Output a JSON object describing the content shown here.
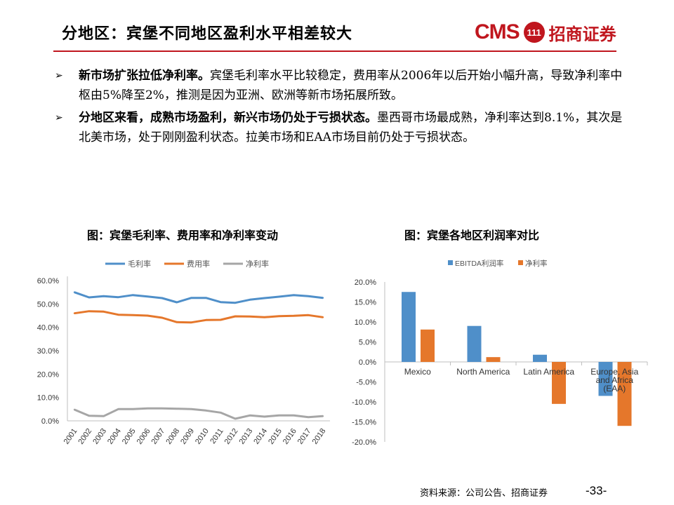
{
  "header": {
    "title": "分地区：宾堡不同地区盈利水平相差较大",
    "logo_text": "CMS",
    "logo_mark": "111",
    "logo_cn": "招商证券",
    "brand_color": "#c0161e"
  },
  "bullets": [
    {
      "icon": "arrow-bullet-icon",
      "bold": "新市场扩张拉低净利率。",
      "text": "宾堡毛利率水平比较稳定，费用率从2006年以后开始小幅升高，导致净利率中枢由5%降至2%，推测是因为亚洲、欧洲等新市场拓展所致。"
    },
    {
      "icon": "arrow-bullet-icon",
      "bold": "分地区来看，成熟市场盈利，新兴市场仍处于亏损状态。",
      "text": "墨西哥市场最成熟，净利率达到8.1%，其次是北美市场，处于刚刚盈利状态。拉美市场和EAA市场目前仍处于亏损状态。"
    }
  ],
  "chart_data": [
    {
      "type": "line",
      "title": "图：宾堡毛利率、费用率和净利率变动",
      "x": [
        "2001",
        "2002",
        "2003",
        "2004",
        "2005",
        "2006",
        "2007",
        "2008",
        "2009",
        "2010",
        "2011",
        "2012",
        "2013",
        "2014",
        "2015",
        "2016",
        "2017",
        "2018"
      ],
      "series": [
        {
          "name": "毛利率",
          "color": "#4f8fc9",
          "values": [
            55.0,
            52.8,
            53.3,
            52.9,
            53.8,
            53.2,
            52.5,
            50.7,
            52.6,
            52.6,
            50.8,
            50.5,
            51.8,
            52.5,
            53.1,
            53.8,
            53.3,
            52.6
          ]
        },
        {
          "name": "费用率",
          "color": "#e5772b",
          "values": [
            46.0,
            46.9,
            46.7,
            45.4,
            45.2,
            45.0,
            44.1,
            42.2,
            42.1,
            43.1,
            43.2,
            44.7,
            44.6,
            44.3,
            44.8,
            44.9,
            45.2,
            44.3
          ]
        },
        {
          "name": "净利率",
          "color": "#a6a6a6",
          "values": [
            4.8,
            2.2,
            2.0,
            5.0,
            5.0,
            5.3,
            5.3,
            5.2,
            5.0,
            4.4,
            3.5,
            0.9,
            2.3,
            1.8,
            2.3,
            2.3,
            1.6,
            2.0
          ]
        }
      ],
      "yticks": [
        "0.0%",
        "10.0%",
        "20.0%",
        "30.0%",
        "40.0%",
        "50.0%",
        "60.0%"
      ],
      "ylim": [
        0,
        60
      ],
      "legend": "top",
      "grid": false
    },
    {
      "type": "bar",
      "title": "图：宾堡各地区利润率对比",
      "categories": [
        "Mexico",
        "North America",
        "Latin America",
        "Europe, Asia and Africa (EAA)"
      ],
      "series": [
        {
          "name": "EBITDA利润率",
          "color": "#4f8fc9",
          "values": [
            17.5,
            9.0,
            1.8,
            -8.5
          ]
        },
        {
          "name": "净利率",
          "color": "#e5772b",
          "values": [
            8.1,
            1.2,
            -10.5,
            -16.0
          ]
        }
      ],
      "yticks": [
        "-20.0%",
        "-15.0%",
        "-10.0%",
        "-5.0%",
        "0.0%",
        "5.0%",
        "10.0%",
        "15.0%",
        "20.0%"
      ],
      "ylim": [
        -20,
        20
      ],
      "legend": "top",
      "grid": false
    }
  ],
  "footer": {
    "source": "资料来源：公司公告、招商证券",
    "page": "-33-"
  }
}
